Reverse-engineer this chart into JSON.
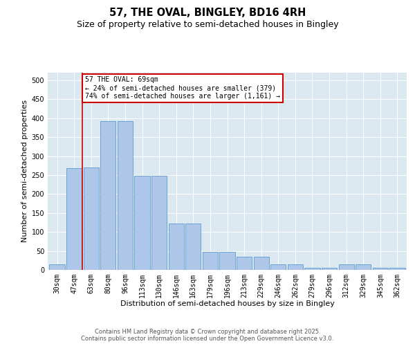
{
  "title": "57, THE OVAL, BINGLEY, BD16 4RH",
  "subtitle": "Size of property relative to semi-detached houses in Bingley",
  "xlabel": "Distribution of semi-detached houses by size in Bingley",
  "ylabel": "Number of semi-detached properties",
  "categories": [
    "30sqm",
    "47sqm",
    "63sqm",
    "80sqm",
    "96sqm",
    "113sqm",
    "130sqm",
    "146sqm",
    "163sqm",
    "179sqm",
    "196sqm",
    "213sqm",
    "229sqm",
    "246sqm",
    "262sqm",
    "279sqm",
    "296sqm",
    "312sqm",
    "329sqm",
    "345sqm",
    "362sqm"
  ],
  "values": [
    15,
    268,
    270,
    393,
    393,
    248,
    248,
    122,
    122,
    47,
    47,
    35,
    35,
    14,
    14,
    5,
    5,
    14,
    14,
    5,
    5
  ],
  "bar_color": "#aec6e8",
  "bar_edge_color": "#5b9bd5",
  "vline_x": 1.5,
  "vline_color": "#cc0000",
  "annotation_title": "57 THE OVAL: 69sqm",
  "annotation_line1": "← 24% of semi-detached houses are smaller (379)",
  "annotation_line2": "74% of semi-detached houses are larger (1,161) →",
  "annotation_box_edgecolor": "#cc0000",
  "ylim": [
    0,
    520
  ],
  "yticks": [
    0,
    50,
    100,
    150,
    200,
    250,
    300,
    350,
    400,
    450,
    500
  ],
  "grid_color": "#ffffff",
  "plot_bg_color": "#dce8f0",
  "fig_bg_color": "#ffffff",
  "footer1": "Contains HM Land Registry data © Crown copyright and database right 2025.",
  "footer2": "Contains public sector information licensed under the Open Government Licence v3.0.",
  "title_fontsize": 10.5,
  "subtitle_fontsize": 9,
  "xlabel_fontsize": 8,
  "ylabel_fontsize": 8,
  "tick_fontsize": 7,
  "annotation_fontsize": 7,
  "footer_fontsize": 6
}
